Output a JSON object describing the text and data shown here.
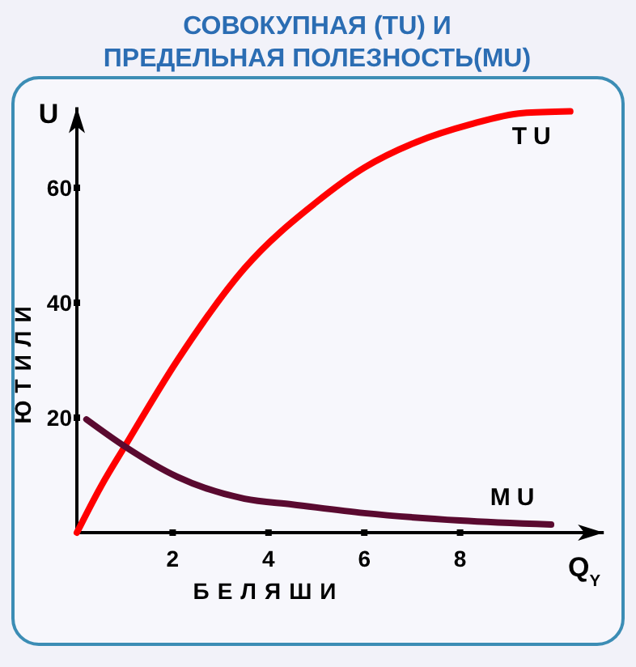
{
  "chart_data": {
    "type": "line",
    "title": "СОВОКУПНАЯ (TU) И\nПРЕДЕЛЬНАЯ ПОЛЕЗНОСТЬ(MU)",
    "xlabel": "БЕЛЯШИ",
    "ylabel": "ЮТИЛИ",
    "annotations": [
      "U",
      "Q$_{Y}$"
    ],
    "xlim": [
      0,
      11
    ],
    "ylim": [
      0,
      74
    ],
    "xticks": [
      2,
      4,
      6,
      8
    ],
    "yticks": [
      20,
      40,
      60
    ],
    "series": [
      {
        "name": "TU",
        "color": "#ff0000",
        "x": [
          0,
          0.5,
          1,
          2.1,
          3.5,
          5,
          6,
          7.1,
          8.2,
          9.3,
          10.3
        ],
        "values": [
          0,
          8,
          15,
          30,
          46,
          57.5,
          63.5,
          68,
          71,
          73,
          73.3
        ]
      },
      {
        "name": "MU",
        "color": "#5a0a30",
        "x": [
          0.2,
          1,
          2.1,
          3.5,
          4.5,
          6,
          8,
          9.9
        ],
        "values": [
          19.7,
          15,
          9.7,
          5.9,
          4.9,
          3.4,
          2.1,
          1.4
        ]
      }
    ]
  }
}
